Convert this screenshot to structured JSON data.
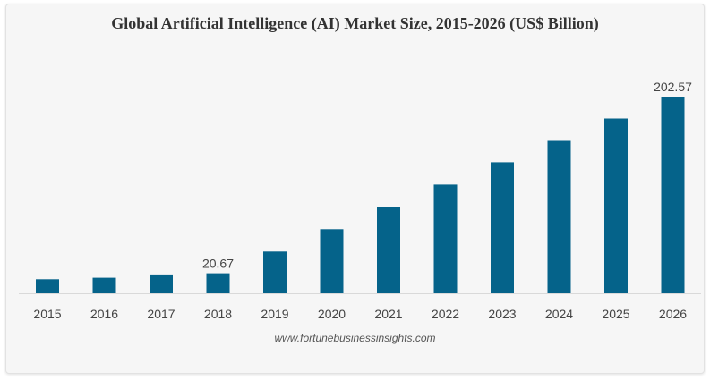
{
  "chart_data": {
    "type": "bar",
    "title": "Global Artificial Intelligence (AI) Market Size, 2015-2026 (US$ Billion)",
    "categories": [
      "2015",
      "2016",
      "2017",
      "2018",
      "2019",
      "2020",
      "2021",
      "2022",
      "2023",
      "2024",
      "2025",
      "2026"
    ],
    "values": [
      14.5,
      16.0,
      18.5,
      20.67,
      43.0,
      66.0,
      89.0,
      112.0,
      135.0,
      157.0,
      180.0,
      202.57
    ],
    "data_labels": {
      "3": "20.67",
      "11": "202.57"
    },
    "xlabel": "",
    "ylabel": "",
    "ylim": [
      0,
      220
    ],
    "grid": false,
    "colors": {
      "bar": "#05638a",
      "baseline": "#d9d9d9",
      "label": "#444444"
    }
  },
  "source": "www.fortunebusinessinsights.com"
}
